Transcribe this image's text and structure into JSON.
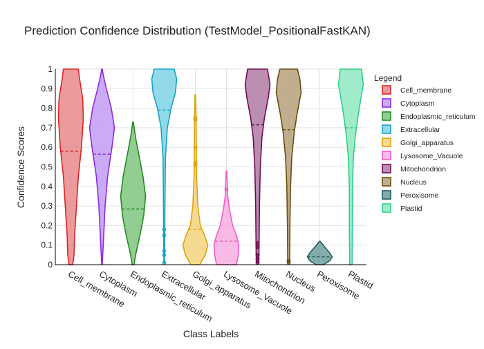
{
  "chart_data": {
    "type": "violin",
    "title": "Prediction Confidence Distribution (TestModel_PositionalFastKAN)",
    "xlabel": "Class Labels",
    "ylabel": "Confidence Scores",
    "ylim": [
      0,
      1
    ],
    "yticks": [
      0,
      0.1,
      0.2,
      0.3,
      0.4,
      0.5,
      0.6,
      0.7,
      0.8,
      0.9,
      1
    ],
    "ytick_labels": [
      "0",
      "0.1",
      "0.2",
      "0.3",
      "0.4",
      "0.5",
      "0.6",
      "0.7",
      "0.8",
      "0.9",
      "1"
    ],
    "grid": true,
    "legend_title": "Legend",
    "legend_position": "right",
    "categories": [
      "Cell_membrane",
      "Cytoplasm",
      "Endoplasmic_reticulum",
      "Extracellular",
      "Golgi_apparatus",
      "Lysosome_Vacuole",
      "Mitochondrion",
      "Nucleus",
      "Peroxisome",
      "Plastid"
    ],
    "series": [
      {
        "name": "Cell_membrane",
        "color": "#d62728",
        "fill": "#e88a8a",
        "mean": 0.58,
        "profile": [
          [
            0,
            0.15
          ],
          [
            0.05,
            0.25
          ],
          [
            0.15,
            0.3
          ],
          [
            0.3,
            0.45
          ],
          [
            0.45,
            0.6
          ],
          [
            0.6,
            0.85
          ],
          [
            0.75,
            1.0
          ],
          [
            0.85,
            0.95
          ],
          [
            0.95,
            0.7
          ],
          [
            1.0,
            0.6
          ]
        ],
        "points": []
      },
      {
        "name": "Cytoplasm",
        "color": "#8a2be2",
        "fill": "#c39bf5",
        "mean": 0.565,
        "profile": [
          [
            0,
            0.02
          ],
          [
            0.1,
            0.1
          ],
          [
            0.3,
            0.25
          ],
          [
            0.45,
            0.45
          ],
          [
            0.6,
            0.8
          ],
          [
            0.7,
            1.0
          ],
          [
            0.8,
            0.75
          ],
          [
            0.9,
            0.35
          ],
          [
            0.97,
            0.1
          ],
          [
            1.0,
            0.03
          ]
        ],
        "points": []
      },
      {
        "name": "Endoplasmic_reticulum",
        "color": "#228b22",
        "fill": "#7fc47f",
        "mean": 0.285,
        "profile": [
          [
            0,
            0.08
          ],
          [
            0.05,
            0.2
          ],
          [
            0.15,
            0.55
          ],
          [
            0.25,
            0.85
          ],
          [
            0.35,
            1.0
          ],
          [
            0.45,
            0.8
          ],
          [
            0.55,
            0.5
          ],
          [
            0.65,
            0.2
          ],
          [
            0.73,
            0.02
          ]
        ],
        "points": []
      },
      {
        "name": "Extracellular",
        "color": "#17a2c5",
        "fill": "#7fd3e6",
        "mean": 0.79,
        "profile": [
          [
            0.01,
            0.03
          ],
          [
            0.2,
            0.05
          ],
          [
            0.4,
            0.07
          ],
          [
            0.55,
            0.1
          ],
          [
            0.7,
            0.25
          ],
          [
            0.8,
            0.55
          ],
          [
            0.88,
            0.9
          ],
          [
            0.95,
            1.0
          ],
          [
            1.0,
            0.8
          ]
        ],
        "points": [
          0.01,
          0.05,
          0.07,
          0.15,
          0.18
        ]
      },
      {
        "name": "Golgi_apparatus",
        "color": "#e0a10b",
        "fill": "#f5d37f",
        "mean": 0.18,
        "profile": [
          [
            0,
            0.35
          ],
          [
            0.05,
            0.8
          ],
          [
            0.1,
            1.0
          ],
          [
            0.15,
            0.75
          ],
          [
            0.2,
            0.4
          ],
          [
            0.3,
            0.2
          ],
          [
            0.45,
            0.1
          ],
          [
            0.6,
            0.08
          ],
          [
            0.75,
            0.06
          ],
          [
            0.87,
            0.02
          ]
        ],
        "points": [
          0.51,
          0.52,
          0.6,
          0.74,
          0.75
        ]
      },
      {
        "name": "Lysosome_Vacuole",
        "color": "#f05cc8",
        "fill": "#f8aee0",
        "mean": 0.12,
        "profile": [
          [
            0,
            0.8
          ],
          [
            0.05,
            0.95
          ],
          [
            0.1,
            1.0
          ],
          [
            0.15,
            0.8
          ],
          [
            0.2,
            0.5
          ],
          [
            0.28,
            0.25
          ],
          [
            0.35,
            0.1
          ],
          [
            0.42,
            0.06
          ],
          [
            0.48,
            0.02
          ]
        ],
        "points": [
          0.385
        ]
      },
      {
        "name": "Mitochondrion",
        "color": "#6e0a52",
        "fill": "#b07aa3",
        "mean": 0.715,
        "profile": [
          [
            0.01,
            0.1
          ],
          [
            0.1,
            0.12
          ],
          [
            0.3,
            0.15
          ],
          [
            0.5,
            0.22
          ],
          [
            0.65,
            0.35
          ],
          [
            0.75,
            0.55
          ],
          [
            0.85,
            0.85
          ],
          [
            0.92,
            1.0
          ],
          [
            1.0,
            0.8
          ]
        ],
        "points": [
          0.01,
          0.03,
          0.05,
          0.09,
          0.11
        ]
      },
      {
        "name": "Nucleus",
        "color": "#6b4c0f",
        "fill": "#b5a07a",
        "mean": 0.69,
        "profile": [
          [
            0.01,
            0.08
          ],
          [
            0.2,
            0.1
          ],
          [
            0.4,
            0.15
          ],
          [
            0.55,
            0.25
          ],
          [
            0.68,
            0.45
          ],
          [
            0.78,
            0.7
          ],
          [
            0.88,
            1.0
          ],
          [
            0.95,
            0.9
          ],
          [
            1.0,
            0.7
          ]
        ],
        "points": [
          0.01,
          0.02
        ]
      },
      {
        "name": "Peroxisome",
        "color": "#1b5e5e",
        "fill": "#6f9e9e",
        "mean": 0.04,
        "profile": [
          [
            0,
            0.3
          ],
          [
            0.02,
            0.8
          ],
          [
            0.04,
            1.0
          ],
          [
            0.06,
            0.8
          ],
          [
            0.09,
            0.4
          ],
          [
            0.12,
            0.02
          ]
        ],
        "points": []
      },
      {
        "name": "Plastid",
        "color": "#2ecf8a",
        "fill": "#8fe8c0",
        "mean": 0.7,
        "profile": [
          [
            0,
            0.1
          ],
          [
            0.2,
            0.12
          ],
          [
            0.4,
            0.13
          ],
          [
            0.55,
            0.2
          ],
          [
            0.65,
            0.35
          ],
          [
            0.75,
            0.55
          ],
          [
            0.85,
            0.8
          ],
          [
            0.92,
            1.0
          ],
          [
            1.0,
            0.85
          ]
        ],
        "points": []
      }
    ]
  }
}
